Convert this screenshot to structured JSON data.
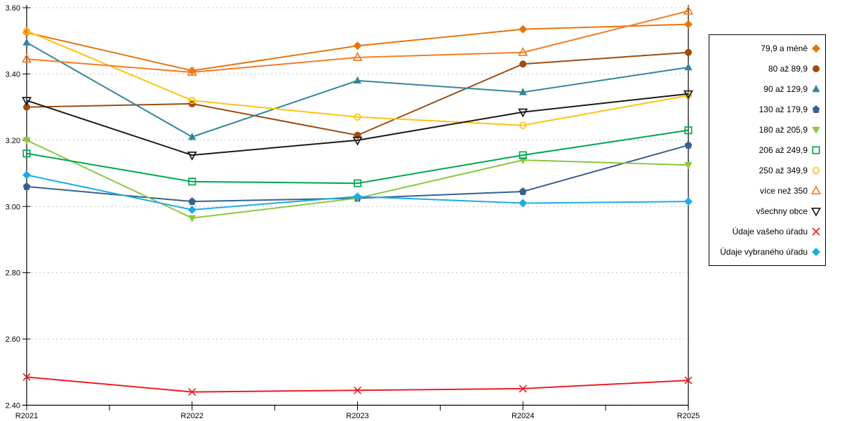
{
  "chart_data": {
    "type": "line",
    "title": "",
    "xlabel": "",
    "ylabel": "",
    "categories": [
      "R2021",
      "R2022",
      "R2023",
      "R2024",
      "R2025"
    ],
    "ylim": [
      2.4,
      3.6
    ],
    "ytick_step": 0.2,
    "ytick_labels": [
      "3.60",
      "3.40",
      "3.20",
      "3.00",
      "2.80",
      "2.60",
      "2.40"
    ],
    "grid": "horizontal-dashed",
    "grid_color": "#c2c2c2",
    "axis_color": "#000000",
    "legend_position": "right",
    "series": [
      {
        "name": "79,9 a méně",
        "color": "#e8730c",
        "marker": "diamond",
        "filled": true,
        "values": [
          3.525,
          3.41,
          3.485,
          3.535,
          3.55
        ]
      },
      {
        "name": "80 až 89,9",
        "color": "#9e4b0e",
        "marker": "circle",
        "filled": true,
        "values": [
          3.3,
          3.31,
          3.215,
          3.43,
          3.465
        ]
      },
      {
        "name": "90 až 129,9",
        "color": "#31859c",
        "marker": "triangle-up",
        "filled": true,
        "values": [
          3.495,
          3.21,
          3.38,
          3.345,
          3.42
        ]
      },
      {
        "name": "130 až 179,9",
        "color": "#376091",
        "marker": "pentagon",
        "filled": true,
        "values": [
          3.06,
          3.015,
          3.025,
          3.045,
          3.185
        ]
      },
      {
        "name": "180 až 205,9",
        "color": "#8dc63f",
        "marker": "triangle-down",
        "filled": true,
        "values": [
          3.2,
          2.965,
          3.025,
          3.14,
          3.125
        ]
      },
      {
        "name": "206 až 249,9",
        "color": "#00a651",
        "marker": "square",
        "filled": false,
        "values": [
          3.16,
          3.075,
          3.07,
          3.155,
          3.23
        ]
      },
      {
        "name": "250 až 349,9",
        "color": "#ffc20e",
        "marker": "circle",
        "filled": false,
        "values": [
          3.53,
          3.32,
          3.27,
          3.245,
          3.335
        ]
      },
      {
        "name": "více než 350",
        "color": "#f47b20",
        "marker": "triangle-up",
        "filled": false,
        "values": [
          3.445,
          3.405,
          3.45,
          3.465,
          3.59
        ]
      },
      {
        "name": "všechny obce",
        "color": "#1a1a1a",
        "marker": "triangle-down",
        "filled": false,
        "values": [
          3.32,
          3.155,
          3.2,
          3.285,
          3.34
        ]
      },
      {
        "name": "Údaje vašeho úřadu",
        "color": "#ec1c24",
        "marker": "x",
        "filled": false,
        "values": [
          2.485,
          2.44,
          2.445,
          2.45,
          2.475
        ]
      },
      {
        "name": "Údaje vybraného úřadu",
        "color": "#1cade4",
        "marker": "diamond",
        "filled": true,
        "values": [
          3.095,
          2.99,
          3.03,
          3.01,
          3.015
        ]
      }
    ]
  }
}
